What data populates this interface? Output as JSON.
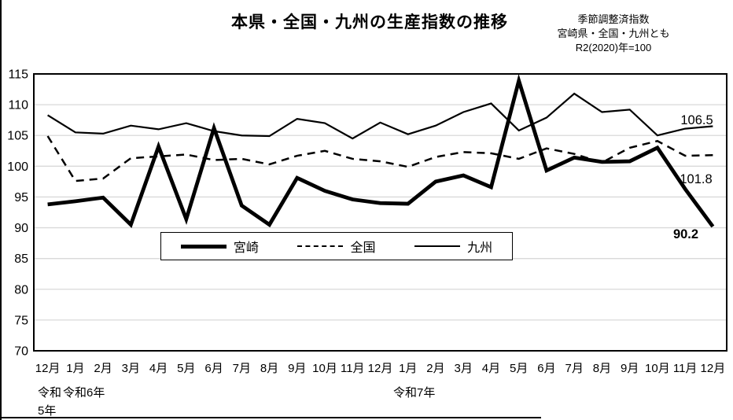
{
  "header": {
    "title": "本県・全国・九州の生産指数の推移",
    "note_lines": [
      "季節調整済指数",
      "宮崎県・全国・九州とも",
      "R2(2020)年=100"
    ]
  },
  "colors": {
    "line": "#000000",
    "grid": "#d9d9d9",
    "background": "#ffffff"
  },
  "era_labels": [
    "令和\n5年",
    "令和6年",
    "令和7年"
  ],
  "chart_data": {
    "type": "line",
    "title": "本県・全国・九州の生産指数の推移",
    "subtitle": "季節調整済指数 宮崎県・全国・九州とも R2(2020)年=100",
    "categories": [
      "12月",
      "1月",
      "2月",
      "3月",
      "4月",
      "5月",
      "6月",
      "7月",
      "8月",
      "9月",
      "10月",
      "11月",
      "12月",
      "1月",
      "2月",
      "3月",
      "4月",
      "5月",
      "6月",
      "7月",
      "8月",
      "9月",
      "10月",
      "11月",
      "12月"
    ],
    "era_groups": [
      {
        "label": "令和5年",
        "months": [
          "12月"
        ]
      },
      {
        "label": "令和6年",
        "months": [
          "1月",
          "2月",
          "3月",
          "4月",
          "5月",
          "6月",
          "7月",
          "8月",
          "9月",
          "10月",
          "11月",
          "12月"
        ]
      },
      {
        "label": "令和7年",
        "months": [
          "1月",
          "2月",
          "3月",
          "4月",
          "5月",
          "6月",
          "7月",
          "8月",
          "9月",
          "10月",
          "11月",
          "12月"
        ]
      }
    ],
    "y_axis": {
      "min": 70,
      "max": 115,
      "step": 5
    },
    "grid": true,
    "legend_position": "inside-left-middle",
    "series": [
      {
        "name": "宮崎",
        "style": "thick-solid",
        "values": [
          93.8,
          94.3,
          94.9,
          90.5,
          103.2,
          91.4,
          106.2,
          93.6,
          90.5,
          98.1,
          96.0,
          94.6,
          94.0,
          93.9,
          97.5,
          98.5,
          96.6,
          113.9,
          99.3,
          101.4,
          100.7,
          100.8,
          103.0,
          96.3,
          90.2
        ]
      },
      {
        "name": "全国",
        "style": "dashed",
        "values": [
          104.9,
          97.6,
          98.0,
          101.3,
          101.6,
          101.9,
          101.0,
          101.2,
          100.3,
          101.7,
          102.5,
          101.2,
          100.8,
          99.9,
          101.5,
          102.3,
          102.1,
          101.2,
          102.9,
          102.0,
          100.6,
          103.0,
          104.1,
          101.7,
          101.8
        ]
      },
      {
        "name": "九州",
        "style": "thin-solid",
        "values": [
          108.3,
          105.5,
          105.3,
          106.6,
          106.0,
          107.0,
          105.7,
          105.0,
          104.9,
          107.7,
          107.0,
          104.5,
          107.1,
          105.2,
          106.6,
          108.8,
          110.2,
          105.8,
          107.9,
          111.8,
          108.8,
          109.2,
          105.0,
          106.1,
          106.5
        ]
      }
    ],
    "end_labels": [
      {
        "series": "九州",
        "text": "106.5"
      },
      {
        "series": "全国",
        "text": "101.8"
      },
      {
        "series": "宮崎",
        "text": "90.2"
      }
    ]
  }
}
